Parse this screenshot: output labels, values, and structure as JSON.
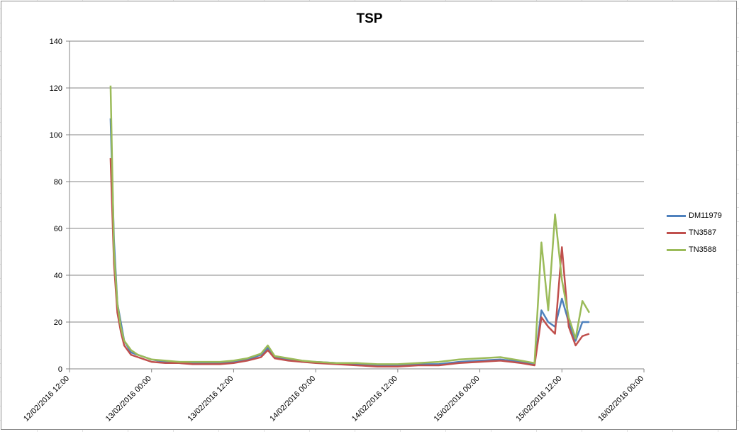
{
  "chart_data": {
    "type": "line",
    "title": "TSP",
    "xlabel": "",
    "ylabel": "",
    "ylim": [
      0,
      140
    ],
    "yticks": [
      0,
      20,
      40,
      60,
      80,
      100,
      120,
      140
    ],
    "xlim": [
      "12/02/2016 12:00",
      "16/02/2016 00:00"
    ],
    "xticks": [
      "12/02/2016 12:00",
      "13/02/2016 00:00",
      "13/02/2016 12:00",
      "14/02/2016 00:00",
      "14/02/2016 12:00",
      "15/02/2016 00:00",
      "15/02/2016 12:00",
      "16/02/2016 00:00"
    ],
    "grid": true,
    "legend_position": "right",
    "x": [
      "12/02/2016 18:00",
      "12/02/2016 18:30",
      "12/02/2016 19:00",
      "12/02/2016 19:30",
      "12/02/2016 20:00",
      "12/02/2016 21:00",
      "12/02/2016 22:00",
      "12/02/2016 23:00",
      "13/02/2016 00:00",
      "13/02/2016 02:00",
      "13/02/2016 04:00",
      "13/02/2016 06:00",
      "13/02/2016 08:00",
      "13/02/2016 10:00",
      "13/02/2016 12:00",
      "13/02/2016 14:00",
      "13/02/2016 16:00",
      "13/02/2016 17:00",
      "13/02/2016 18:00",
      "13/02/2016 20:00",
      "13/02/2016 22:00",
      "14/02/2016 00:00",
      "14/02/2016 03:00",
      "14/02/2016 06:00",
      "14/02/2016 09:00",
      "14/02/2016 12:00",
      "14/02/2016 15:00",
      "14/02/2016 18:00",
      "14/02/2016 21:00",
      "15/02/2016 00:00",
      "15/02/2016 03:00",
      "15/02/2016 06:00",
      "15/02/2016 08:00",
      "15/02/2016 09:00",
      "15/02/2016 10:00",
      "15/02/2016 11:00",
      "15/02/2016 12:00",
      "15/02/2016 13:00",
      "15/02/2016 14:00",
      "15/02/2016 15:00",
      "15/02/2016 16:00"
    ],
    "series": [
      {
        "name": "DM11979",
        "color": "#4f81bd",
        "values": [
          107,
          55,
          28,
          20,
          12,
          7,
          6,
          5,
          4,
          3,
          3,
          2.5,
          2.5,
          2.5,
          3,
          4,
          6,
          9,
          5,
          4,
          3,
          3,
          2.5,
          2,
          1.5,
          1.5,
          2,
          2,
          3,
          3.5,
          4,
          3,
          2,
          25,
          20,
          18,
          30,
          20,
          12,
          20,
          20
        ]
      },
      {
        "name": "TN3587",
        "color": "#c0504d",
        "values": [
          90,
          45,
          24,
          16,
          10,
          6,
          5,
          4,
          3,
          2.5,
          2.5,
          2,
          2,
          2,
          2.5,
          3.5,
          5,
          8,
          4.5,
          3.5,
          3,
          2.5,
          2,
          1.5,
          1,
          1,
          1.5,
          1.5,
          2.5,
          3,
          3.5,
          2.5,
          1.5,
          22,
          18,
          15,
          52,
          18,
          10,
          14,
          15
        ]
      },
      {
        "name": "TN3588",
        "color": "#9bbb59",
        "values": [
          121,
          50,
          28,
          18,
          12,
          8,
          6,
          5,
          4,
          3.5,
          3,
          3,
          3,
          3,
          3.5,
          4.5,
          6.5,
          10,
          5.5,
          4.5,
          3.5,
          3,
          2.5,
          2.5,
          2,
          2,
          2.5,
          3,
          4,
          4.5,
          5,
          3.5,
          2.5,
          54,
          25,
          66,
          38,
          22,
          13,
          29,
          24
        ]
      }
    ]
  }
}
